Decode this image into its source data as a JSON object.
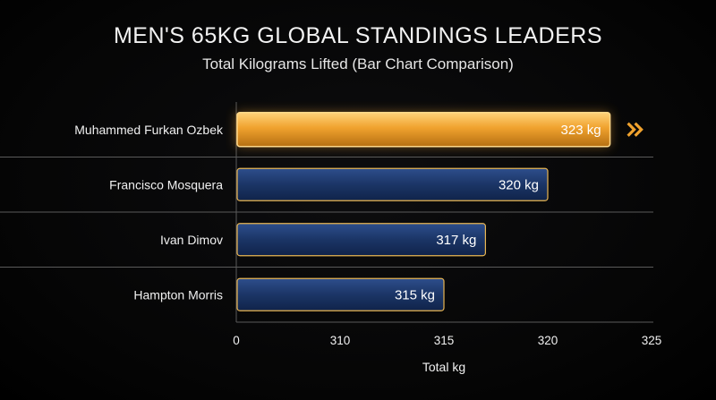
{
  "title": "MEN'S 65KG GLOBAL STANDINGS LEADERS",
  "subtitle": "Total Kilograms Lifted (Bar Chart Comparison)",
  "colors": {
    "highlight": "#f0a22e",
    "bar": "#1b3566",
    "bar_border": "#e8b552",
    "grid": "#5a5a5a"
  },
  "highlight_icon": "double-chevron-right-icon",
  "chart_data": {
    "type": "bar",
    "orientation": "horizontal",
    "categories": [
      "Muhammed Furkan Ozbek",
      "Francisco Mosquera",
      "Ivan Dimov",
      "Hampton Morris"
    ],
    "values": [
      323,
      320,
      317,
      315
    ],
    "value_labels": [
      "323 kg",
      "320 kg",
      "317 kg",
      "315 kg"
    ],
    "xlabel": "Total kg",
    "xticks": [
      "0",
      "310",
      "315",
      "320",
      "325"
    ],
    "xlim": [
      305,
      325
    ],
    "axis_break": true,
    "highlighted": "Muhammed Furkan Ozbek",
    "grid": true
  }
}
